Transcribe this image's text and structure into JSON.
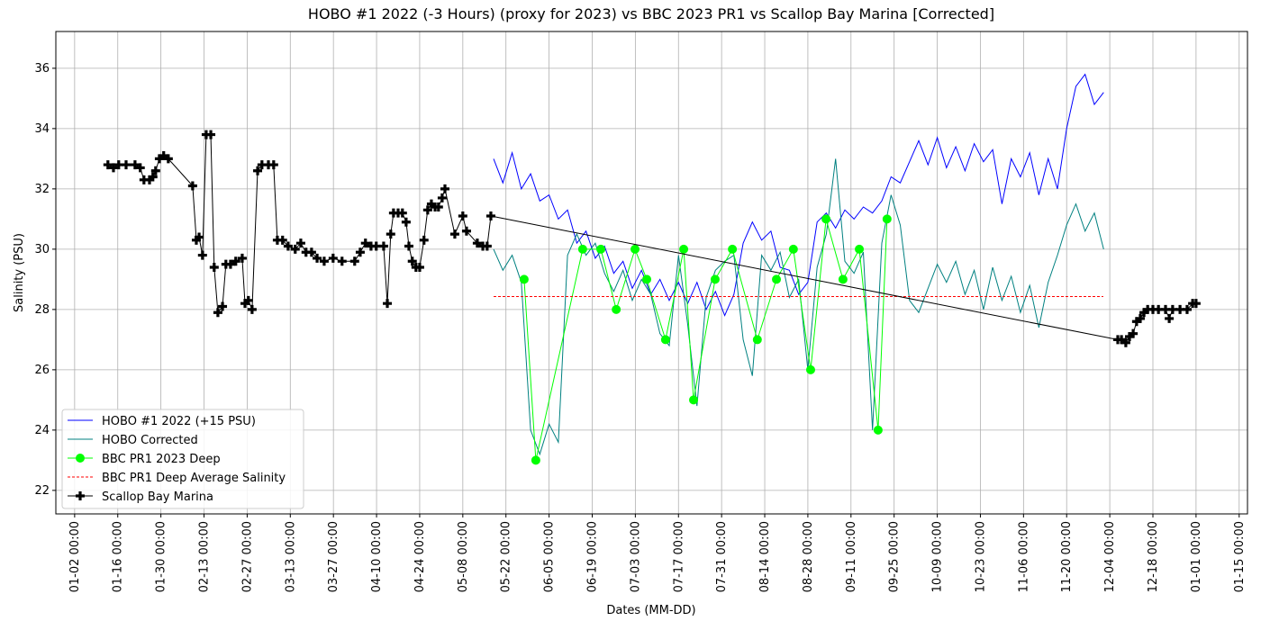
{
  "chart_data": {
    "type": "line",
    "title": "HOBO #1 2022 (-3 Hours) (proxy for 2023) vs BBC 2023 PR1 vs Scallop Bay Marina [Corrected]",
    "x_label": "Dates (MM-DD)",
    "y_label": "Salinity (PSU)",
    "xlim": [
      -4.1,
      382.7
    ],
    "ylim": [
      21.22,
      37.22
    ],
    "yticks": [
      22,
      24,
      26,
      28,
      30,
      32,
      34,
      36
    ],
    "xticks": [
      {
        "value": 2,
        "label": "01-02 00:00"
      },
      {
        "value": 16,
        "label": "01-16 00:00"
      },
      {
        "value": 30,
        "label": "01-30 00:00"
      },
      {
        "value": 44,
        "label": "02-13 00:00"
      },
      {
        "value": 58,
        "label": "02-27 00:00"
      },
      {
        "value": 72,
        "label": "03-13 00:00"
      },
      {
        "value": 86,
        "label": "03-27 00:00"
      },
      {
        "value": 100,
        "label": "04-10 00:00"
      },
      {
        "value": 114,
        "label": "04-24 00:00"
      },
      {
        "value": 128,
        "label": "05-08 00:00"
      },
      {
        "value": 142,
        "label": "05-22 00:00"
      },
      {
        "value": 156,
        "label": "06-05 00:00"
      },
      {
        "value": 170,
        "label": "06-19 00:00"
      },
      {
        "value": 184,
        "label": "07-03 00:00"
      },
      {
        "value": 198,
        "label": "07-17 00:00"
      },
      {
        "value": 212,
        "label": "07-31 00:00"
      },
      {
        "value": 226,
        "label": "08-14 00:00"
      },
      {
        "value": 240,
        "label": "08-28 00:00"
      },
      {
        "value": 254,
        "label": "09-11 00:00"
      },
      {
        "value": 268,
        "label": "09-25 00:00"
      },
      {
        "value": 282,
        "label": "10-09 00:00"
      },
      {
        "value": 296,
        "label": "10-23 00:00"
      },
      {
        "value": 310,
        "label": "11-06 00:00"
      },
      {
        "value": 324,
        "label": "11-20 00:00"
      },
      {
        "value": 338,
        "label": "12-04 00:00"
      },
      {
        "value": 352,
        "label": "12-18 00:00"
      },
      {
        "value": 366,
        "label": "01-01 00:00"
      },
      {
        "value": 380,
        "label": "01-15 00:00"
      }
    ],
    "grid": true,
    "legend": "lower left",
    "series": [
      {
        "name": "HOBO #1 2022 (+15 PSU)",
        "color": "#0000ff",
        "linewidth": 1,
        "linestyle": "solid",
        "marker": "none",
        "x": [
          138,
          141,
          144,
          147,
          150,
          153,
          156,
          159,
          162,
          165,
          168,
          171,
          174,
          177,
          180,
          183,
          186,
          189,
          192,
          195,
          198,
          201,
          204,
          207,
          210,
          213,
          216,
          219,
          222,
          225,
          228,
          231,
          234,
          237,
          240,
          243,
          246,
          249,
          252,
          255,
          258,
          261,
          264,
          267,
          270,
          273,
          276,
          279,
          282,
          285,
          288,
          291,
          294,
          297,
          300,
          303,
          306,
          309,
          312,
          315,
          318,
          321,
          324,
          327,
          330,
          333,
          336
        ],
        "values": [
          33.0,
          32.2,
          33.2,
          32.0,
          32.5,
          31.6,
          31.8,
          31.0,
          31.3,
          30.2,
          30.6,
          29.7,
          30.1,
          29.2,
          29.6,
          28.7,
          29.3,
          28.5,
          29.0,
          28.3,
          28.9,
          28.2,
          28.9,
          28.0,
          28.6,
          27.8,
          28.5,
          30.2,
          30.9,
          30.3,
          30.6,
          29.4,
          29.3,
          28.5,
          28.9,
          30.9,
          31.2,
          30.7,
          31.3,
          31.0,
          31.4,
          31.2,
          31.6,
          32.4,
          32.2,
          32.9,
          33.6,
          32.8,
          33.7,
          32.7,
          33.4,
          32.6,
          33.5,
          32.9,
          33.3,
          31.5,
          33.0,
          32.4,
          33.2,
          31.8,
          33.0,
          32.0,
          34.0,
          35.4,
          35.8,
          34.8,
          35.2
        ]
      },
      {
        "name": "HOBO Corrected",
        "color": "#008080",
        "linewidth": 1,
        "linestyle": "solid",
        "marker": "none",
        "x": [
          138,
          141,
          144,
          147,
          150,
          153,
          156,
          159,
          162,
          165,
          168,
          171,
          174,
          177,
          180,
          183,
          186,
          189,
          192,
          195,
          198,
          201,
          204,
          207,
          210,
          213,
          216,
          219,
          222,
          225,
          228,
          231,
          234,
          237,
          240,
          243,
          246,
          249,
          252,
          255,
          258,
          261,
          264,
          267,
          270,
          273,
          276,
          279,
          282,
          285,
          288,
          291,
          294,
          297,
          300,
          303,
          306,
          309,
          312,
          315,
          318,
          321,
          324,
          327,
          330,
          333,
          336
        ],
        "values": [
          30.0,
          29.3,
          29.8,
          28.9,
          24.0,
          23.2,
          24.2,
          23.6,
          29.8,
          30.5,
          29.8,
          30.2,
          29.2,
          28.6,
          29.3,
          28.3,
          29.0,
          28.5,
          27.2,
          26.8,
          29.8,
          27.5,
          24.8,
          28.4,
          29.3,
          29.6,
          29.8,
          27.0,
          25.8,
          29.8,
          29.3,
          29.9,
          28.4,
          29.0,
          26.0,
          29.4,
          30.5,
          33.0,
          29.6,
          29.2,
          29.9,
          24.0,
          30.2,
          31.8,
          30.8,
          28.3,
          27.9,
          28.7,
          29.5,
          28.9,
          29.6,
          28.5,
          29.3,
          28.0,
          29.4,
          28.3,
          29.1,
          27.9,
          28.8,
          27.4,
          28.9,
          29.8,
          30.8,
          31.5,
          30.6,
          31.2,
          30.0
        ]
      },
      {
        "name": "BBC PR1 2023 Deep",
        "color": "#00ff00",
        "linewidth": 1,
        "linestyle": "solid",
        "marker": "circle",
        "x": [
          147.9,
          151.7,
          166.9,
          172.8,
          177.8,
          183.9,
          187.7,
          193.8,
          199.7,
          202.9,
          209.9,
          215.5,
          223.6,
          229.8,
          235.3,
          240.9,
          245.9,
          251.4,
          256.7,
          262.8,
          265.7
        ],
        "values": [
          29,
          23,
          30,
          30,
          28,
          30,
          29,
          27,
          30,
          25,
          29,
          30,
          27,
          29,
          30,
          26,
          31,
          29,
          30,
          24,
          31
        ]
      },
      {
        "name": "BBC PR1 Deep Average Salinity",
        "color": "#ff0000",
        "linewidth": 1,
        "linestyle": "dashed",
        "marker": "none",
        "x": [
          138,
          335.9
        ],
        "values": [
          28.43,
          28.43
        ]
      },
      {
        "name": "Scallop Bay Marina",
        "color": "#000000",
        "linewidth": 1,
        "linestyle": "solid",
        "marker": "plus",
        "x": [
          12.8,
          14.6,
          16.3,
          18.7,
          21.6,
          23.3,
          24.5,
          26.3,
          27.4,
          28.3,
          29.5,
          30.9,
          32.4,
          40.3,
          41.5,
          42.4,
          43.5,
          44.7,
          46.2,
          47.3,
          48.5,
          50.0,
          51.1,
          52.6,
          54.3,
          56.4,
          57.3,
          58.4,
          59.6,
          61.4,
          62.8,
          64.9,
          66.6,
          67.8,
          69.5,
          71.3,
          73.6,
          75.4,
          77.1,
          78.9,
          80.7,
          83.0,
          85.9,
          88.8,
          92.9,
          94.7,
          96.4,
          98.2,
          99.9,
          102.3,
          103.5,
          104.6,
          105.5,
          107.0,
          108.4,
          109.6,
          110.5,
          111.6,
          112.8,
          114.0,
          115.4,
          116.6,
          117.8,
          119.0,
          120.1,
          121.3,
          122.2,
          125.4,
          128.0,
          129.2,
          132.7,
          134.5,
          135.9,
          137.1,
          340.6,
          341.8,
          343.2,
          344.4,
          345.6,
          346.7,
          347.9,
          349.1,
          350.3,
          352.0,
          353.8,
          356.1,
          357.3,
          358.4,
          360.8,
          363.1,
          364.9,
          366.0
        ],
        "values": [
          32.8,
          32.7,
          32.8,
          32.8,
          32.8,
          32.7,
          32.3,
          32.3,
          32.4,
          32.6,
          33.0,
          33.1,
          33.0,
          32.1,
          30.3,
          30.4,
          29.8,
          33.8,
          33.8,
          29.4,
          27.9,
          28.1,
          29.5,
          29.5,
          29.6,
          29.7,
          28.2,
          28.3,
          28.0,
          32.6,
          32.8,
          32.8,
          32.8,
          30.3,
          30.3,
          30.1,
          30.0,
          30.2,
          29.9,
          29.9,
          29.7,
          29.6,
          29.7,
          29.6,
          29.6,
          29.9,
          30.2,
          30.1,
          30.1,
          30.1,
          28.2,
          30.5,
          31.2,
          31.2,
          31.2,
          30.9,
          30.1,
          29.6,
          29.4,
          29.4,
          30.3,
          31.3,
          31.5,
          31.4,
          31.4,
          31.7,
          32.0,
          30.5,
          31.1,
          30.6,
          30.2,
          30.1,
          30.1,
          31.1,
          27.0,
          27.0,
          26.9,
          27.1,
          27.2,
          27.6,
          27.7,
          27.9,
          28.0,
          28.0,
          28.0,
          28.0,
          27.7,
          28.0,
          28.0,
          28.0,
          28.2,
          28.2
        ]
      }
    ]
  }
}
